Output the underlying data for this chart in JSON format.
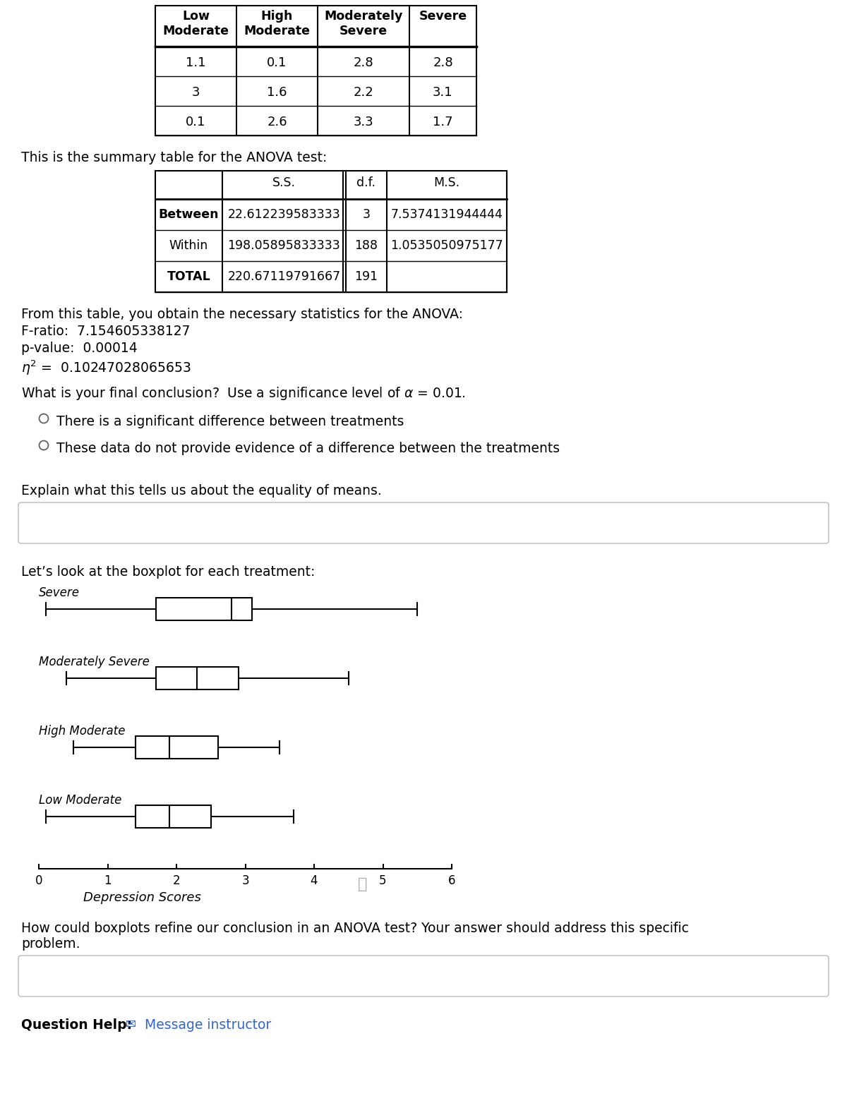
{
  "col_headers": [
    "Low\nModerate",
    "High\nModerate",
    "Moderately\nSevere",
    "Severe"
  ],
  "table1_data": [
    [
      "1.1",
      "0.1",
      "2.8",
      "2.8"
    ],
    [
      "3",
      "1.6",
      "2.2",
      "3.1"
    ],
    [
      "0.1",
      "2.6",
      "3.3",
      "1.7"
    ]
  ],
  "anova_intro": "This is the summary table for the ANOVA test:",
  "anova_data": [
    [
      "22.612239583333",
      "3",
      "7.5374131944444"
    ],
    [
      "198.05895833333",
      "188",
      "1.0535050975177"
    ],
    [
      "220.67119791667",
      "191",
      ""
    ]
  ],
  "row_labels": [
    "Between",
    "Within",
    "TOTAL"
  ],
  "row_label_weights": [
    "bold",
    "normal",
    "bold"
  ],
  "radio1": "There is a significant difference between treatments",
  "radio2": "These data do not provide evidence of a difference between the treatments",
  "explain_label": "Explain what this tells us about the equality of means.",
  "boxplot_intro": "Let’s look at the boxplot for each treatment:",
  "bp_labels": [
    "Severe",
    "Moderately Severe",
    "High Moderate",
    "Low Moderate"
  ],
  "bp_defs": [
    [
      0.1,
      1.7,
      2.8,
      3.1,
      5.5
    ],
    [
      0.4,
      1.7,
      2.3,
      2.9,
      4.5
    ],
    [
      0.5,
      1.4,
      1.9,
      2.6,
      3.5
    ],
    [
      0.1,
      1.4,
      1.9,
      2.5,
      3.7
    ]
  ],
  "xlabel": "Depression Scores",
  "boxplot_question": "How could boxplots refine our conclusion in an ANOVA test? Your answer should address this specific\nproblem.",
  "question_help_text": "Question Help:",
  "message_instructor": "Message instructor",
  "bg_color": "#ffffff",
  "text_color": "#000000",
  "link_color": "#3366cc"
}
